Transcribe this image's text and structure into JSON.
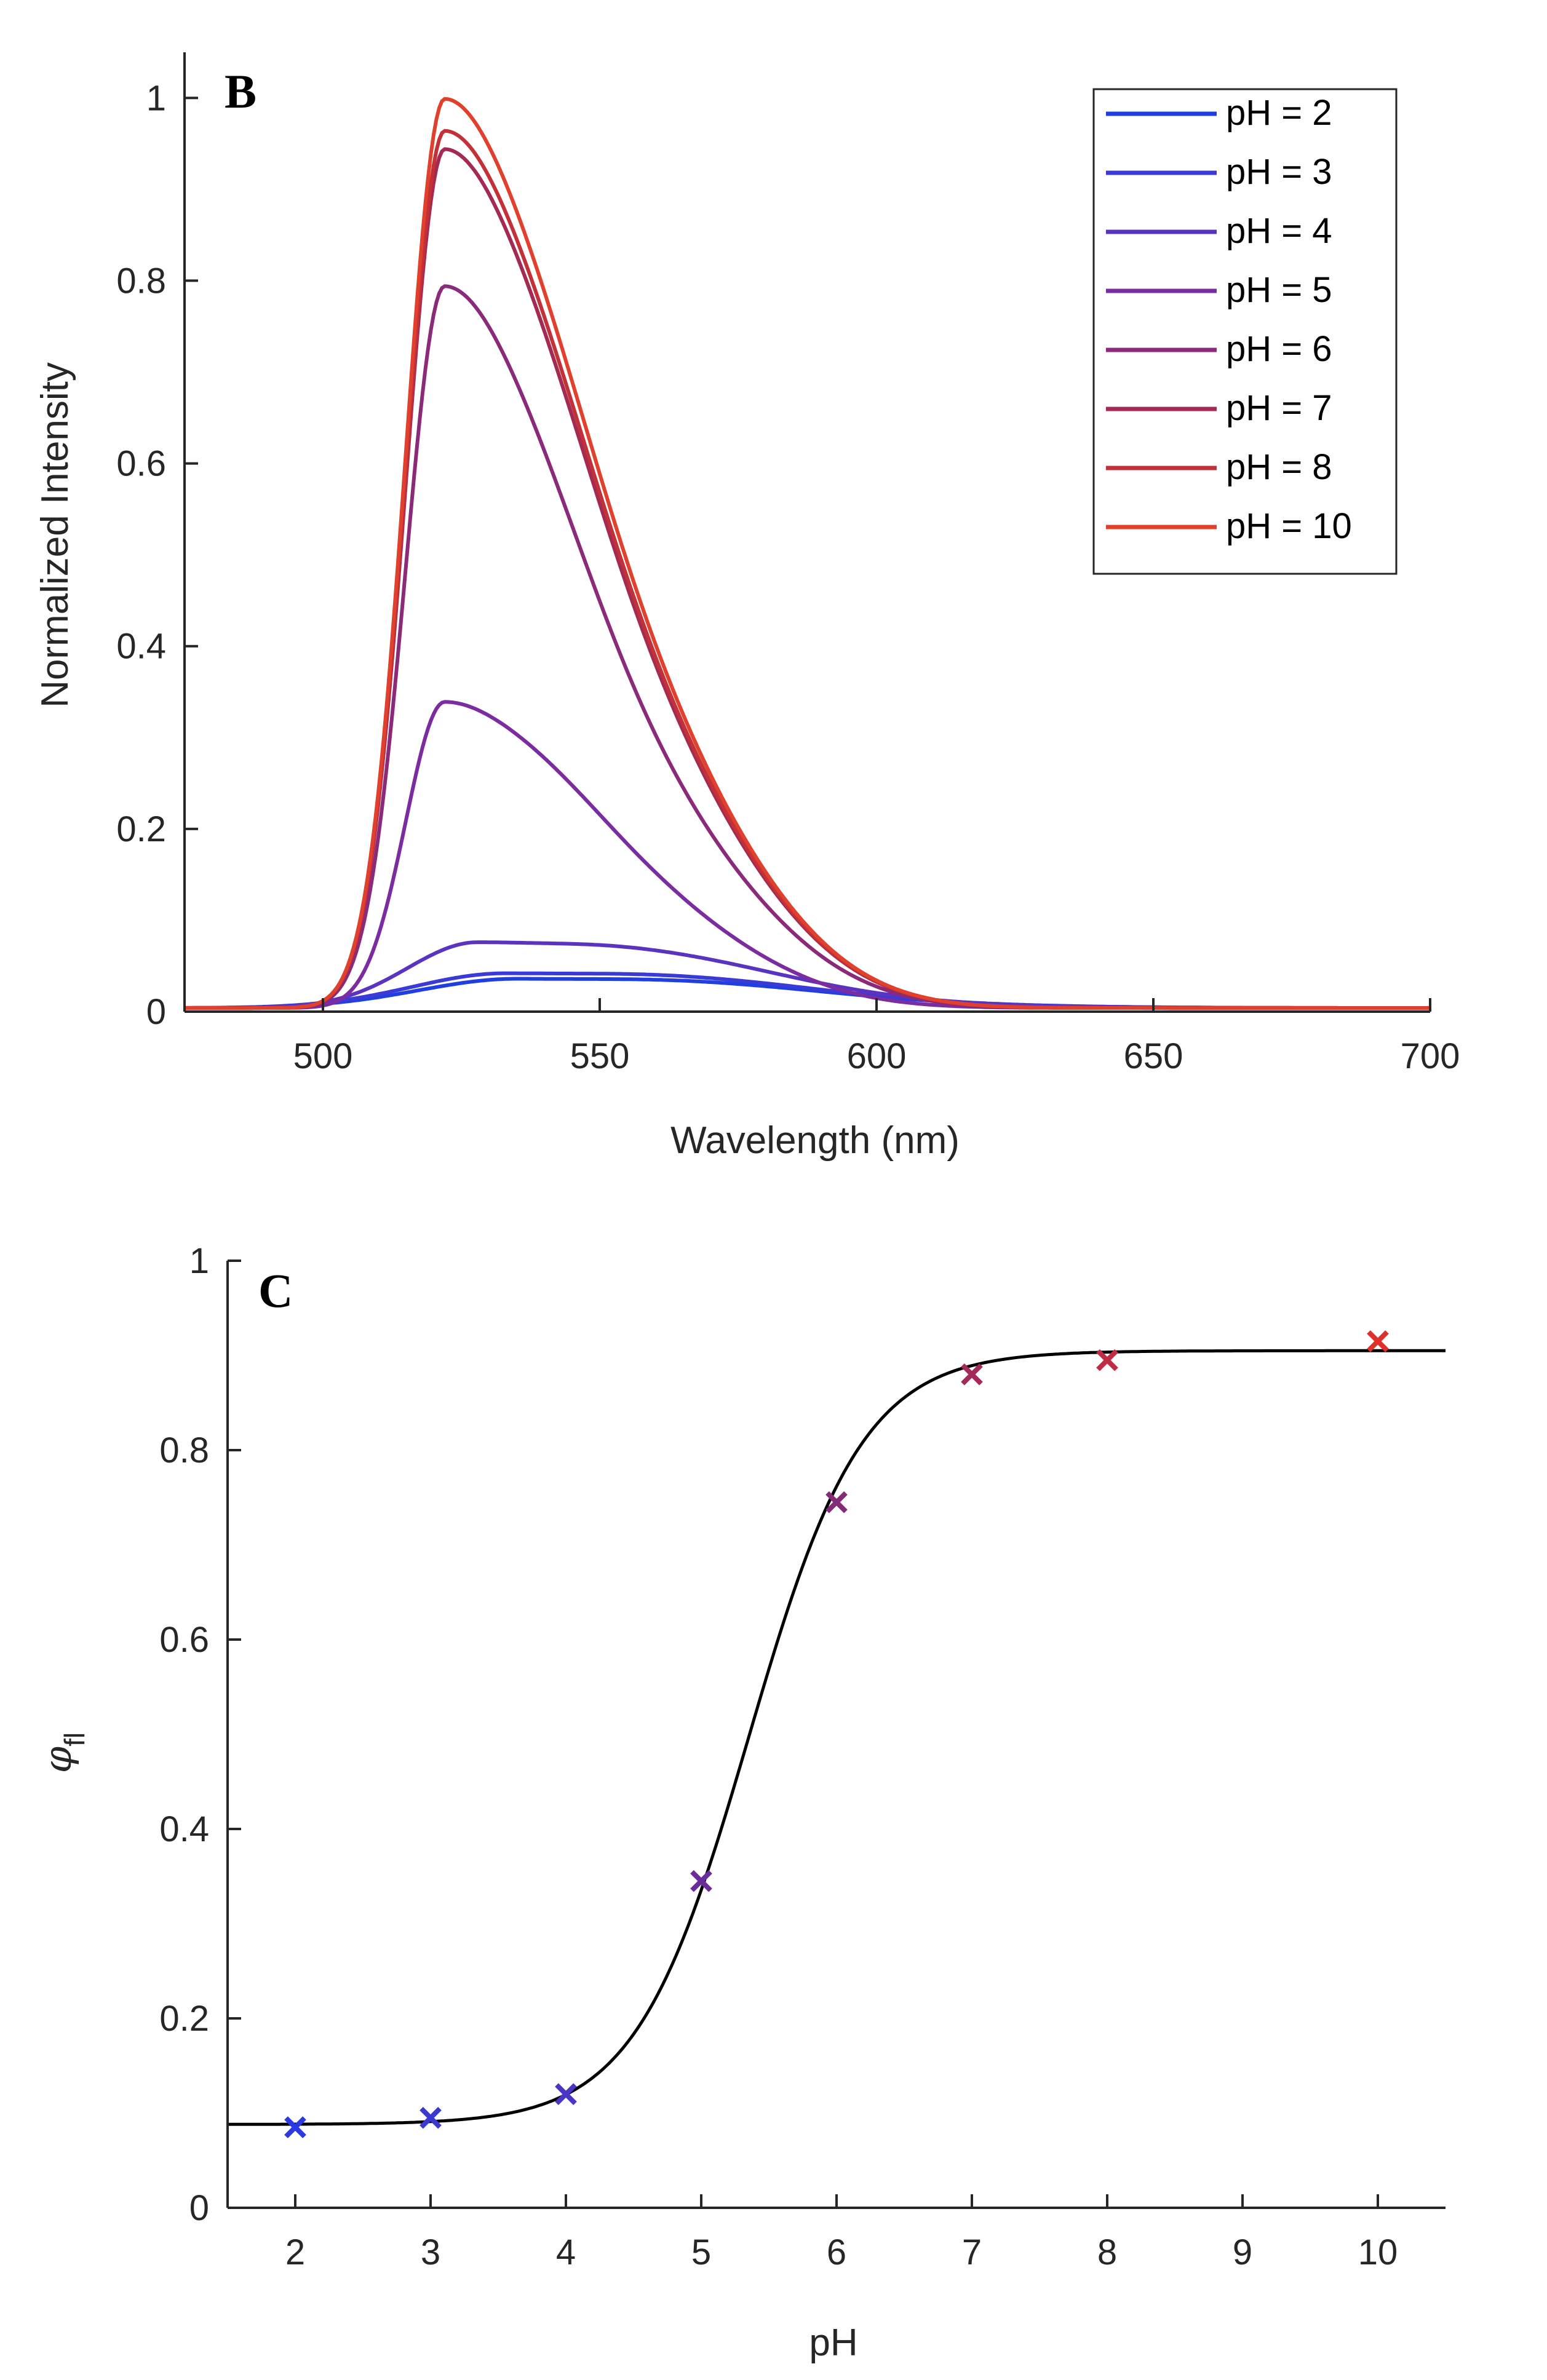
{
  "chart_data": [
    {
      "type": "line",
      "panel": "B",
      "xlabel": "Wavelength (nm)",
      "ylabel": "Normalized Intensity",
      "xlim": [
        475,
        700
      ],
      "ylim": [
        0,
        1.05
      ],
      "xticks": [
        500,
        550,
        600,
        650,
        700
      ],
      "yticks": [
        0,
        0.2,
        0.4,
        0.6,
        0.8,
        1
      ],
      "xtick_labels": [
        "500",
        "550",
        "600",
        "650",
        "700"
      ],
      "ytick_labels": [
        "0",
        "0.2",
        "0.4",
        "0.6",
        "0.8",
        "1"
      ],
      "legend_position": "top-right",
      "series": [
        {
          "name": "pH = 2",
          "color": "#1f3fe0",
          "peak": 0.032,
          "center": 535,
          "wl": 25,
          "wr": 60
        },
        {
          "name": "pH = 3",
          "color": "#3a3ad6",
          "peak": 0.038,
          "center": 533,
          "wl": 24,
          "wr": 60
        },
        {
          "name": "pH = 4",
          "color": "#5a34c0",
          "peak": 0.072,
          "center": 528,
          "wl": 18,
          "wr": 55
        },
        {
          "name": "pH = 5",
          "color": "#7a2ca0",
          "peak": 0.335,
          "center": 522,
          "wl": 10,
          "wr": 33
        },
        {
          "name": "pH = 6",
          "color": "#8a2a78",
          "peak": 0.79,
          "center": 522,
          "wl": 10,
          "wr": 30
        },
        {
          "name": "pH = 7",
          "color": "#a42a52",
          "peak": 0.94,
          "center": 522,
          "wl": 10,
          "wr": 31
        },
        {
          "name": "pH = 8",
          "color": "#c23038",
          "peak": 0.96,
          "center": 522,
          "wl": 10,
          "wr": 31
        },
        {
          "name": "pH = 10",
          "color": "#e0402c",
          "peak": 0.995,
          "center": 522,
          "wl": 10,
          "wr": 31
        }
      ]
    },
    {
      "type": "scatter",
      "panel": "C",
      "xlabel": "pH",
      "ylabel_main": "φ",
      "ylabel_sub": "fl",
      "xlim": [
        1.5,
        10.5
      ],
      "ylim": [
        0,
        1
      ],
      "xticks": [
        2,
        3,
        4,
        5,
        6,
        7,
        8,
        9,
        10
      ],
      "yticks": [
        0,
        0.2,
        0.4,
        0.6,
        0.8,
        1
      ],
      "xtick_labels": [
        "2",
        "3",
        "4",
        "5",
        "6",
        "7",
        "8",
        "9",
        "10"
      ],
      "ytick_labels": [
        "0",
        "0.2",
        "0.4",
        "0.6",
        "0.8",
        "1"
      ],
      "points": [
        {
          "x": 2,
          "y": 0.085,
          "color": "#2a3ae0"
        },
        {
          "x": 3,
          "y": 0.095,
          "color": "#3a3ad0"
        },
        {
          "x": 4,
          "y": 0.12,
          "color": "#4a36c4"
        },
        {
          "x": 5,
          "y": 0.345,
          "color": "#6a2c98"
        },
        {
          "x": 6,
          "y": 0.745,
          "color": "#842a78"
        },
        {
          "x": 7,
          "y": 0.88,
          "color": "#a42a5c"
        },
        {
          "x": 8,
          "y": 0.895,
          "color": "#c02c44"
        },
        {
          "x": 10,
          "y": 0.915,
          "color": "#e0302c"
        }
      ],
      "fit": {
        "color": "#000000",
        "bottom": 0.088,
        "top": 0.905,
        "x50": 5.35,
        "slope": 0.42
      }
    }
  ]
}
